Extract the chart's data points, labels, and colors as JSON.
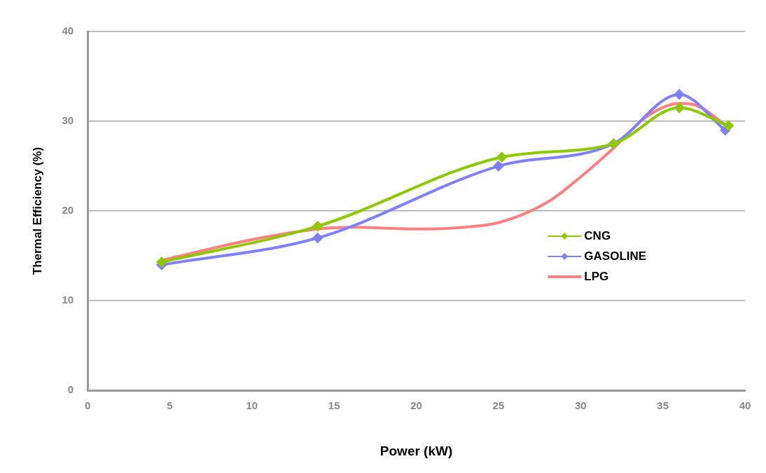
{
  "chart_data": {
    "type": "line",
    "xlabel": "Power (kW)",
    "ylabel": "Thermal Efficiency (%)",
    "xlim": [
      0,
      40
    ],
    "xticks": [
      0,
      5,
      10,
      15,
      20,
      25,
      30,
      35,
      40
    ],
    "ylim": [
      0,
      40
    ],
    "yticks": [
      0,
      10,
      20,
      30,
      40
    ],
    "grid": "y",
    "legend": "right",
    "line_style": "solid",
    "series": [
      {
        "name": "CNG",
        "color": "#8fc800",
        "marker": "diamond",
        "x": [
          4.5,
          14,
          25.2,
          32,
          36,
          39
        ],
        "values": [
          14.3,
          18.3,
          26,
          27.5,
          31.5,
          29.5
        ]
      },
      {
        "name": "GASOLINE",
        "color": "#8080ff",
        "marker": "diamond",
        "x": [
          4.5,
          14,
          25,
          32,
          36,
          38.8
        ],
        "values": [
          14,
          17,
          25,
          27.5,
          33,
          29
        ]
      },
      {
        "name": "LPG",
        "color": "#ff8080",
        "marker": "none",
        "x": [
          4.5,
          10,
          14,
          16,
          20,
          23,
          25,
          28,
          30,
          32,
          34,
          36,
          37,
          39
        ],
        "values": [
          14.5,
          16.8,
          18,
          18.2,
          18,
          18.2,
          18.7,
          21,
          23.8,
          27,
          30.5,
          32,
          31.8,
          29.3
        ]
      }
    ]
  }
}
